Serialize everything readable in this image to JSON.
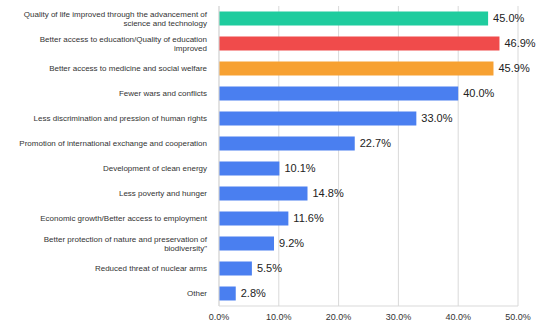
{
  "chart_data": {
    "type": "bar",
    "orientation": "horizontal",
    "categories": [
      "Quality of life improved through the advancement of science and technology",
      "Better access to education/Quality of education improved",
      "Better access to medicine and social welfare",
      "Fewer wars and conflicts",
      "Less discrimination and pression of human rights",
      "Promotion of international exchange and cooperation",
      "Development of clean energy",
      "Less poverty and hunger",
      "Economic growth/Better access to employment",
      "Better protection of nature and preservation of biodiversity\"",
      "Reduced threat of nuclear arms",
      "Other"
    ],
    "values": [
      45.0,
      46.9,
      45.9,
      40.0,
      33.0,
      22.7,
      10.1,
      14.8,
      11.6,
      9.2,
      5.5,
      2.8
    ],
    "value_labels": [
      "45.0%",
      "46.9%",
      "45.9%",
      "40.0%",
      "33.0%",
      "22.7%",
      "10.1%",
      "14.8%",
      "11.6%",
      "9.2%",
      "5.5%",
      "2.8%"
    ],
    "colors": [
      "#1fcc9e",
      "#f04b4b",
      "#f7a132",
      "#4a7ff0",
      "#4a7ff0",
      "#4a7ff0",
      "#4a7ff0",
      "#4a7ff0",
      "#4a7ff0",
      "#4a7ff0",
      "#4a7ff0",
      "#4a7ff0"
    ],
    "xlim": [
      0,
      50
    ],
    "xticks": [
      {
        "value": 0,
        "label": "0.0%"
      },
      {
        "value": 10,
        "label": "10.0%"
      },
      {
        "value": 20,
        "label": "20.0%"
      },
      {
        "value": 30,
        "label": "30.0%"
      },
      {
        "value": 40,
        "label": "40.0%"
      },
      {
        "value": 50,
        "label": "50.0%"
      }
    ],
    "grid": true,
    "data_labels": true
  }
}
